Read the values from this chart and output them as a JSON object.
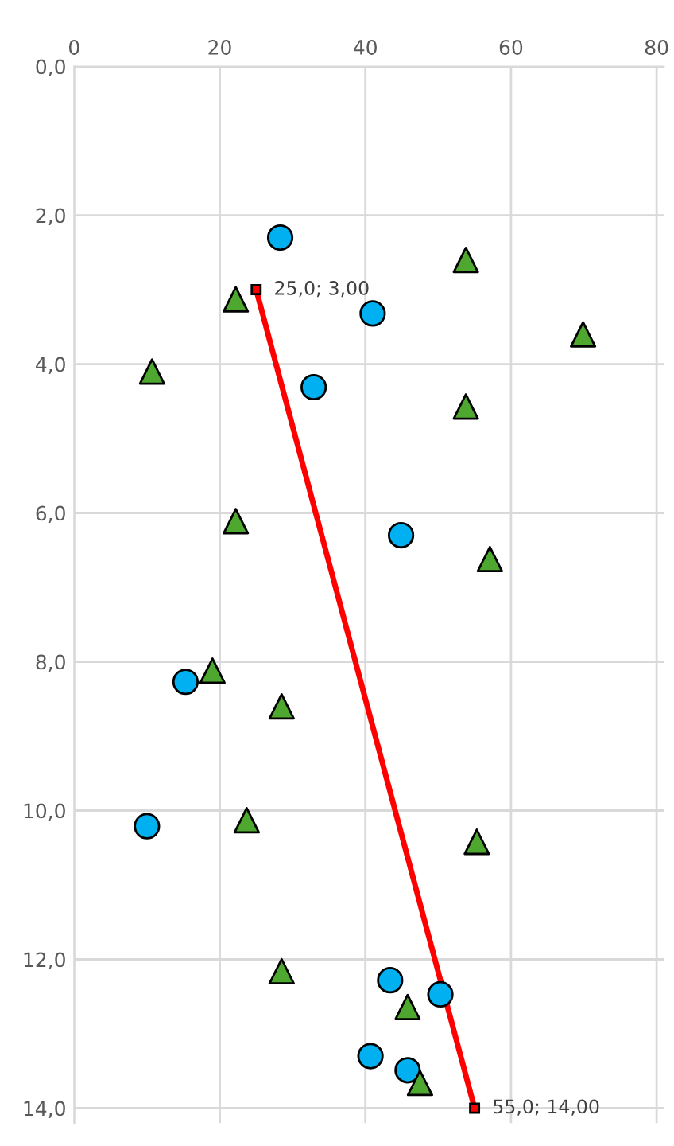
{
  "chart_data": {
    "type": "scatter",
    "xlim": [
      0,
      81
    ],
    "xticks": [
      0,
      20,
      40,
      60,
      80
    ],
    "ylim": [
      14.2,
      0
    ],
    "yticks": [
      {
        "value": 0,
        "label": "0,0"
      },
      {
        "value": 2,
        "label": "2,0"
      },
      {
        "value": 4,
        "label": "4,0"
      },
      {
        "value": 6,
        "label": "6,0"
      },
      {
        "value": 8,
        "label": "8,0"
      },
      {
        "value": 10,
        "label": "10,0"
      },
      {
        "value": 12,
        "label": "12,0"
      },
      {
        "value": 14,
        "label": "14,0"
      }
    ],
    "grid": true,
    "legend": false,
    "series": [
      {
        "marker": "circle",
        "color": "#00b0f0",
        "x": [
          28.3,
          41.0,
          32.9,
          44.9,
          15.3,
          10.0,
          43.4,
          50.3,
          40.7,
          45.8
        ],
        "values": [
          2.3,
          3.32,
          4.31,
          6.3,
          8.27,
          10.21,
          12.28,
          12.47,
          13.3,
          13.49
        ]
      },
      {
        "marker": "triangle",
        "color": "#4ea72e",
        "x": [
          22.2,
          53.8,
          69.9,
          10.7,
          53.8,
          22.2,
          57.1,
          19.0,
          28.5,
          23.7,
          55.3,
          28.5,
          45.8,
          47.5
        ],
        "values": [
          3.13,
          2.6,
          3.6,
          4.1,
          4.57,
          6.11,
          6.62,
          8.12,
          8.6,
          10.13,
          10.42,
          12.16,
          12.64,
          13.66
        ]
      },
      {
        "type": "line",
        "marker": "square",
        "line_style": "solid",
        "color": "#ff0000",
        "x": [
          25,
          55
        ],
        "values": [
          3,
          14
        ]
      }
    ],
    "annotations": [
      {
        "text": "25,0; 3,00",
        "x": 25,
        "y": 3
      },
      {
        "text": "55,0; 14,00",
        "x": 55,
        "y": 14
      }
    ]
  }
}
